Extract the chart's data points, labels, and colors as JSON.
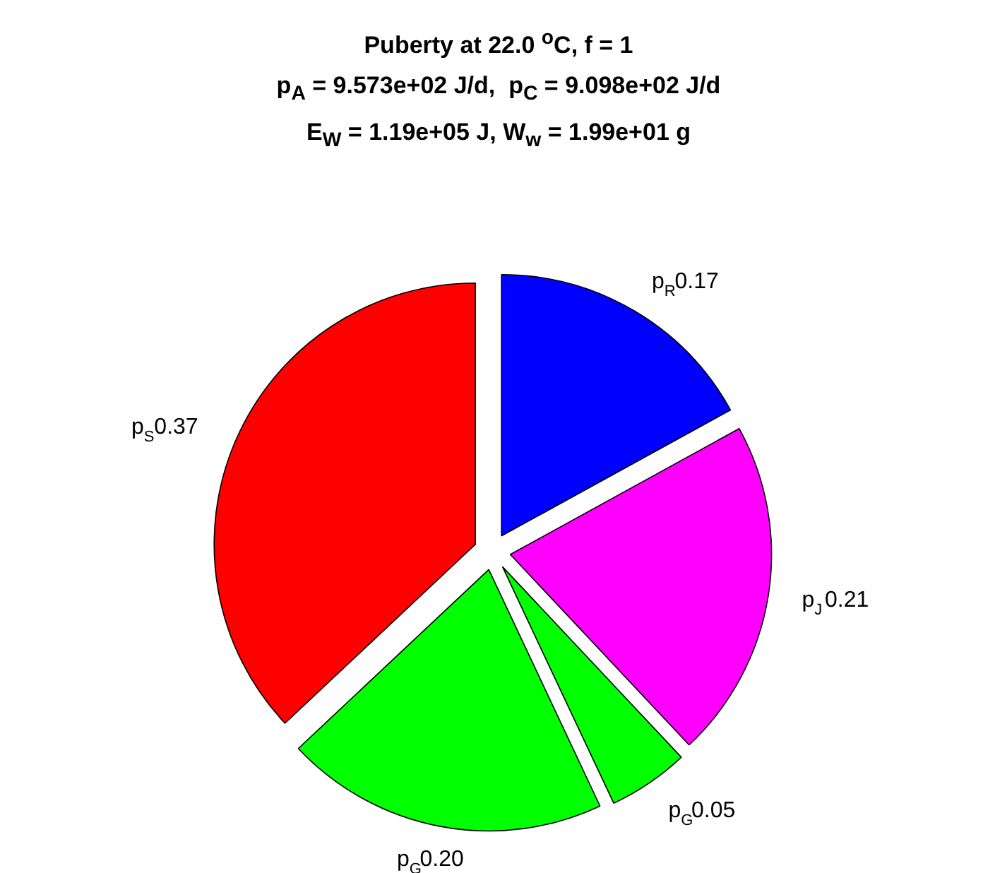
{
  "chart_data": {
    "type": "pie",
    "title": "Puberty at 22.0 $^{o}$C, f = 1",
    "subtitle": "p$_{A}$ = 9.573e+02 J/d,  p$_{C}$ = 9.098e+02 J/d\nE$_{W}$ = 1.19e+05 J, W$_{w}$ = 1.99e+01 g",
    "categories": [
      "p$_{R}$",
      "p$_{J}$",
      "p$_{G}$",
      "p$_{G}$",
      "p$_{S}$"
    ],
    "values": [
      0.17,
      0.21,
      0.05,
      0.2,
      0.37
    ],
    "value_labels": [
      "0.17",
      "0.21",
      "0.05",
      "0.20",
      "0.37"
    ],
    "colors": [
      "#0000ff",
      "#ff00ff",
      "#00ff00",
      "#00ff00",
      "#ff0000"
    ]
  }
}
